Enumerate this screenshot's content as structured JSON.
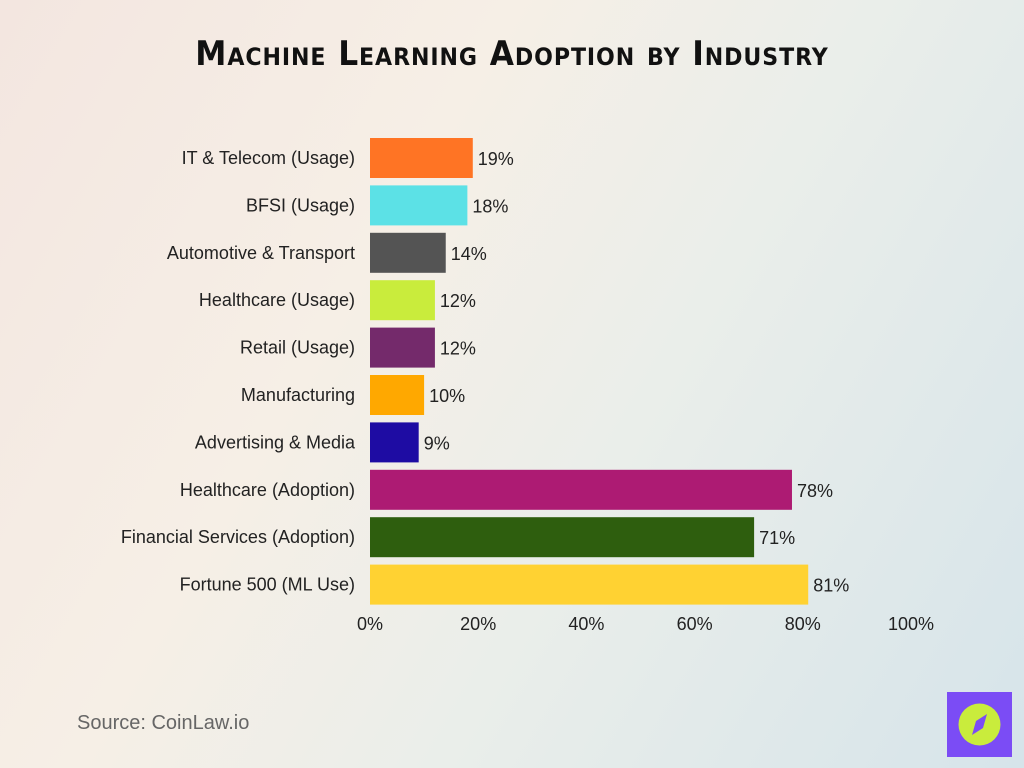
{
  "chart_data": {
    "type": "bar",
    "orientation": "horizontal",
    "title": "Machine Learning Adoption by Industry",
    "categories": [
      "IT & Telecom (Usage)",
      "BFSI (Usage)",
      "Automotive & Transport",
      "Healthcare (Usage)",
      "Retail (Usage)",
      "Manufacturing",
      "Advertising & Media",
      "Healthcare (Adoption)",
      "Financial Services (Adoption)",
      "Fortune 500 (ML Use)"
    ],
    "values": [
      19,
      18,
      14,
      12,
      12,
      10,
      9,
      78,
      71,
      81
    ],
    "data_labels": [
      "19%",
      "18%",
      "14%",
      "12%",
      "12%",
      "10%",
      "9%",
      "78%",
      "71%",
      "81%"
    ],
    "colors": [
      "#ff7424",
      "#5ce1e6",
      "#545454",
      "#c9ec3c",
      "#742a6b",
      "#ffa800",
      "#1e0ca3",
      "#ad1b73",
      "#2e5e0e",
      "#ffd232"
    ],
    "xlim": [
      0,
      100
    ],
    "x_ticks": [
      "0%",
      "20%",
      "40%",
      "60%",
      "80%",
      "100%"
    ],
    "grid": false,
    "legend": "none"
  },
  "source": "Source: CoinLaw.io",
  "logo": {
    "icon": "compass-icon",
    "bg": "#7b4cf5",
    "fg": "#c9ec3c"
  }
}
